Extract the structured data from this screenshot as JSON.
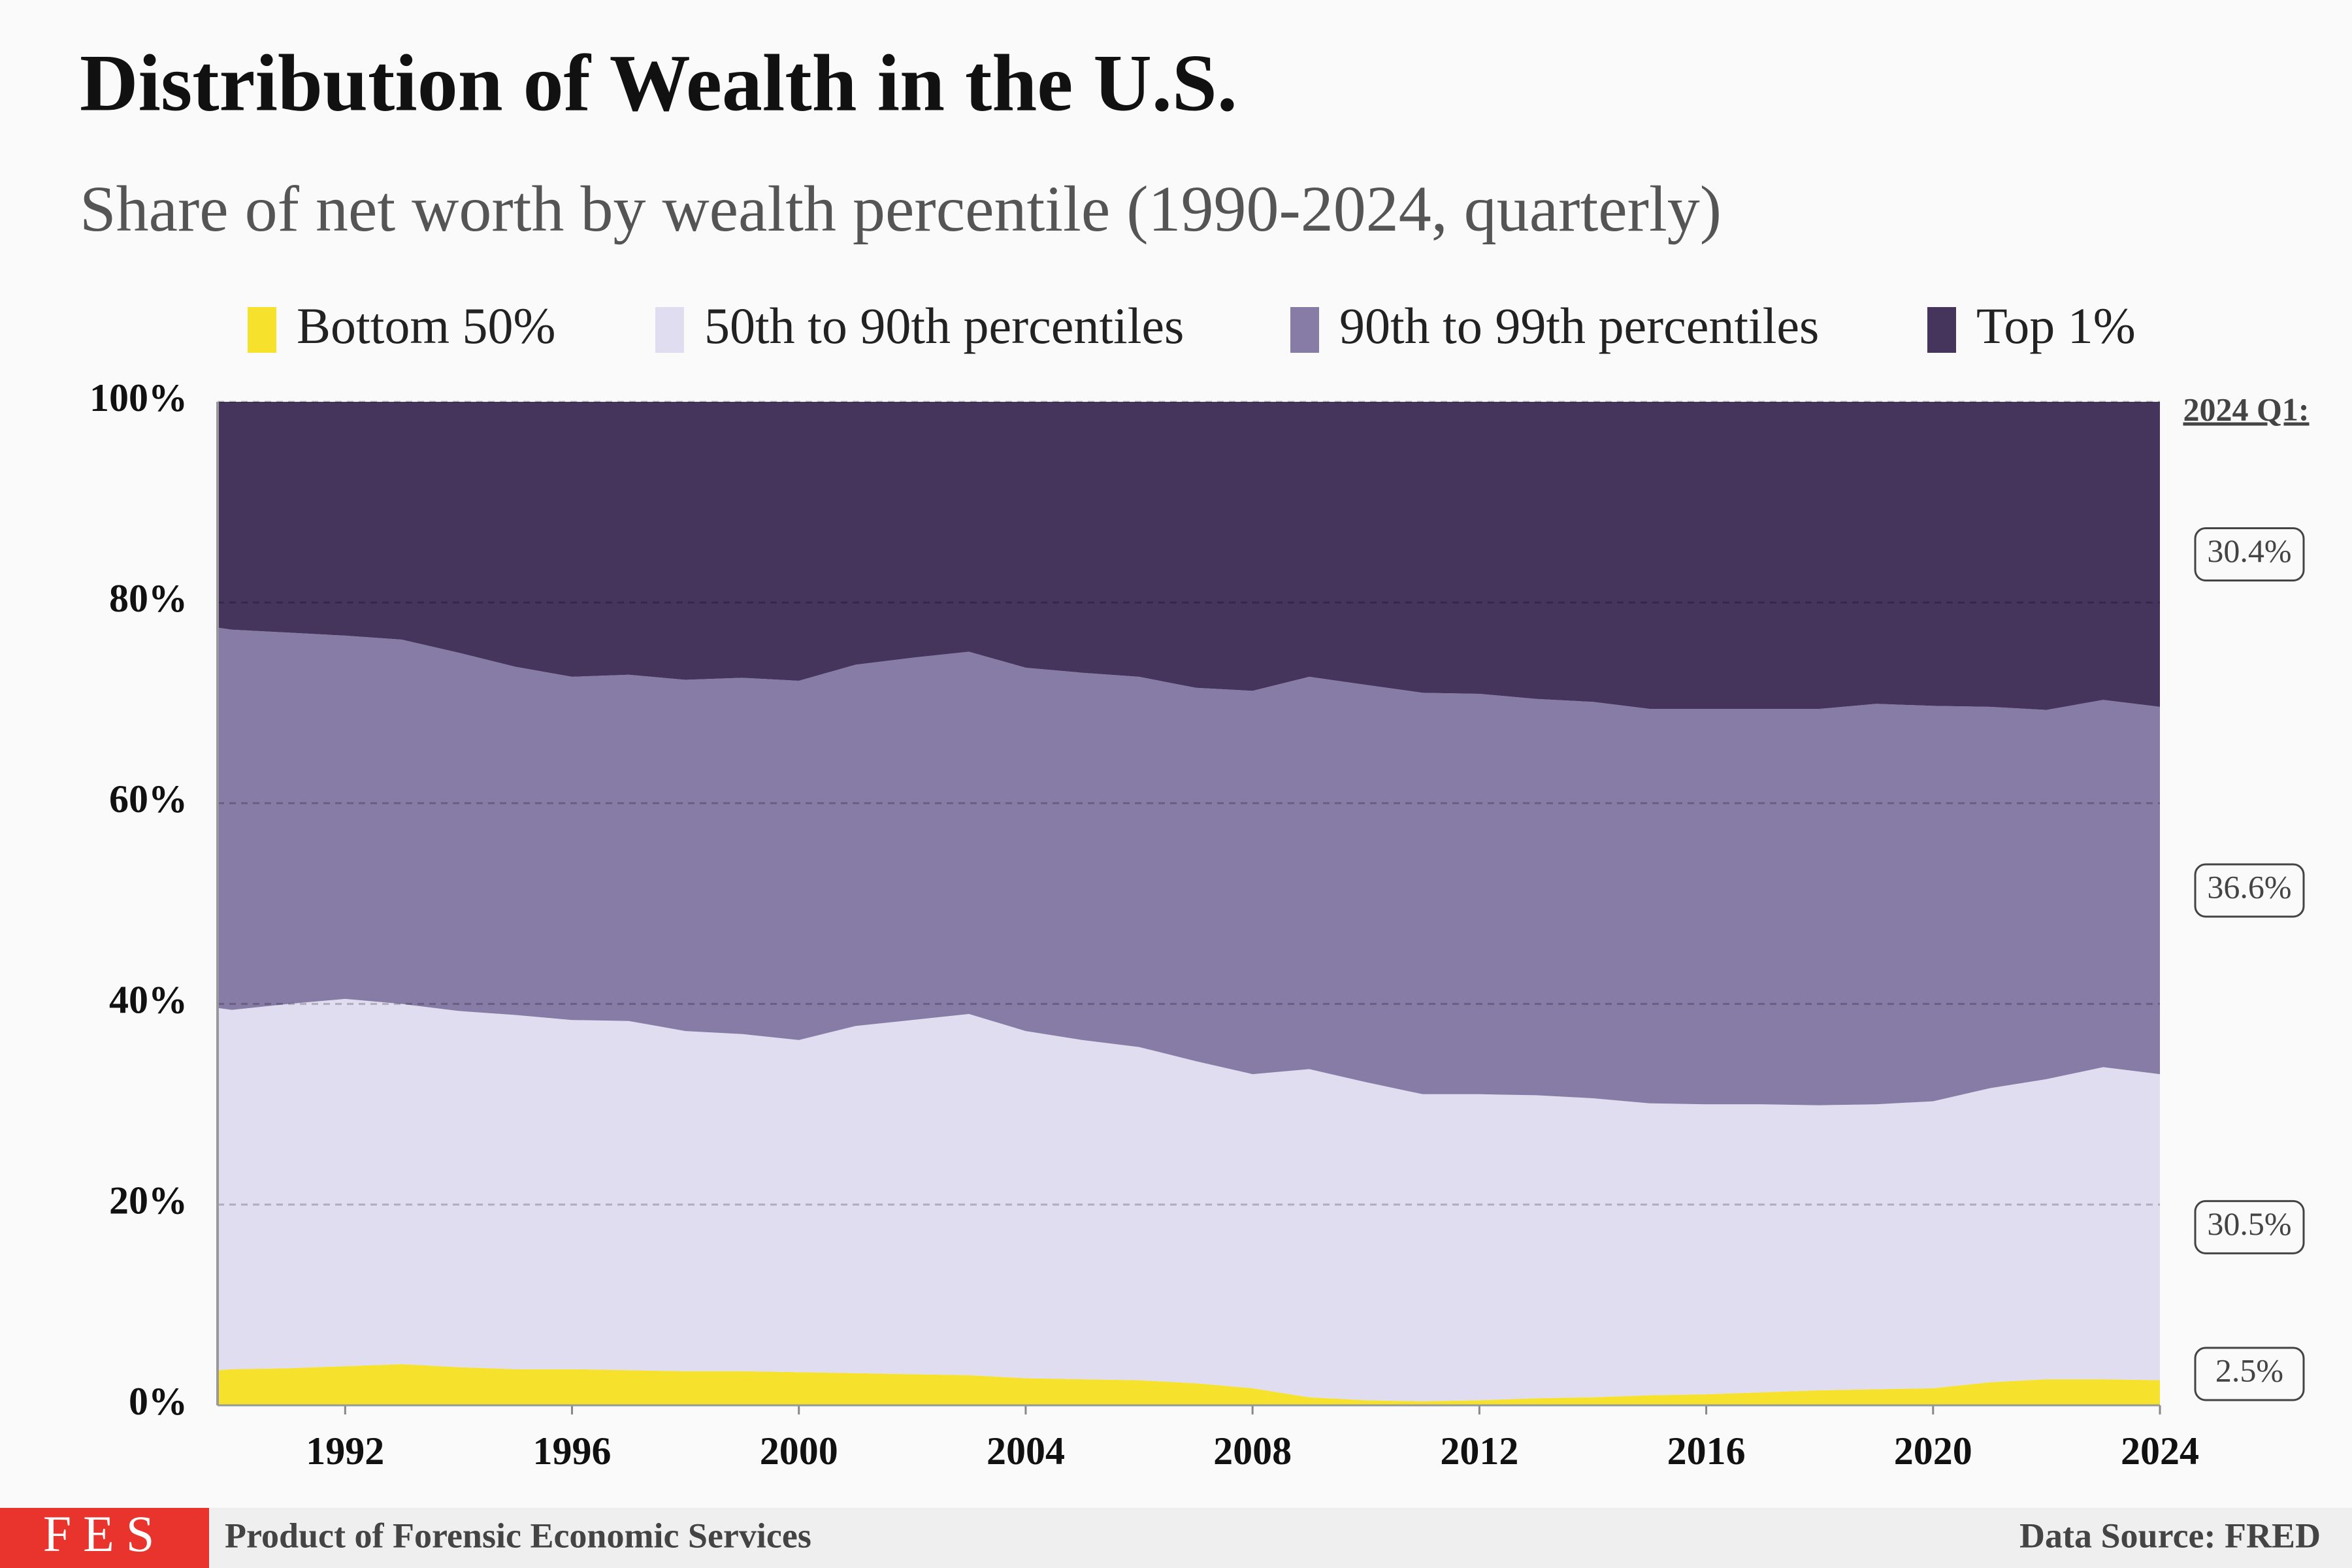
{
  "chart_data": {
    "type": "area",
    "stacked": true,
    "title": "Distribution of Wealth in the U.S.",
    "subtitle": "Share of net worth by wealth percentile (1990-2024, quarterly)",
    "end_label_title": "2024 Q1:",
    "credit": "Product of Forensic Economic Services",
    "source": "Data Source: FRED",
    "logo": "FES",
    "x": [
      1989.75,
      1990,
      1991,
      1992,
      1993,
      1994,
      1995,
      1996,
      1997,
      1998,
      1999,
      2000,
      2001,
      2002,
      2003,
      2004,
      2005,
      2006,
      2007,
      2008,
      2009,
      2010,
      2011,
      2012,
      2013,
      2014,
      2015,
      2016,
      2017,
      2018,
      2019,
      2020,
      2021,
      2022,
      2023,
      2024
    ],
    "xlim": [
      1989.75,
      2024
    ],
    "xticks": [
      1992,
      1996,
      2000,
      2004,
      2008,
      2012,
      2016,
      2020,
      2024
    ],
    "ylim": [
      0,
      100
    ],
    "yticks": [
      {
        "value": 0,
        "label": "0%"
      },
      {
        "value": 20,
        "label": "20%"
      },
      {
        "value": 40,
        "label": "40%"
      },
      {
        "value": 60,
        "label": "60%"
      },
      {
        "value": 80,
        "label": "80%"
      },
      {
        "value": 100,
        "label": "100%"
      }
    ],
    "grid": true,
    "series": [
      {
        "name": "Bottom 50%",
        "color": "#f6e22c",
        "values": [
          3.5,
          3.6,
          3.7,
          3.9,
          4.1,
          3.8,
          3.6,
          3.6,
          3.5,
          3.4,
          3.4,
          3.3,
          3.2,
          3.1,
          3.0,
          2.7,
          2.6,
          2.5,
          2.2,
          1.7,
          0.8,
          0.5,
          0.4,
          0.5,
          0.7,
          0.8,
          1.0,
          1.1,
          1.3,
          1.5,
          1.6,
          1.7,
          2.3,
          2.6,
          2.6,
          2.5
        ],
        "value_labels": [
          null,
          null,
          null,
          null,
          null,
          null,
          null,
          null,
          null,
          null,
          null,
          null,
          null,
          null,
          null,
          null,
          null,
          null,
          null,
          null,
          null,
          null,
          null,
          null,
          null,
          null,
          null,
          null,
          null,
          null,
          null,
          null,
          null,
          null,
          null,
          "2.5%"
        ]
      },
      {
        "name": "50th to 90th percentiles",
        "color": "#e1ddf0",
        "values": [
          36.1,
          35.8,
          36.3,
          36.6,
          35.9,
          35.5,
          35.3,
          34.8,
          34.8,
          33.9,
          33.6,
          33.1,
          34.6,
          35.3,
          36.0,
          34.6,
          33.8,
          33.2,
          32.1,
          31.3,
          32.7,
          31.7,
          30.6,
          30.5,
          30.2,
          29.8,
          29.1,
          28.9,
          28.7,
          28.4,
          28.4,
          28.6,
          29.3,
          29.9,
          31.1,
          30.5
        ],
        "value_labels": [
          null,
          null,
          null,
          null,
          null,
          null,
          null,
          null,
          null,
          null,
          null,
          null,
          null,
          null,
          null,
          null,
          null,
          null,
          null,
          null,
          null,
          null,
          null,
          null,
          null,
          null,
          null,
          null,
          null,
          null,
          null,
          null,
          null,
          null,
          null,
          "30.5%"
        ]
      },
      {
        "name": "90th to 99th percentiles",
        "color": "#877ca6",
        "values": [
          37.9,
          37.9,
          37.0,
          36.2,
          36.3,
          35.7,
          34.7,
          34.2,
          34.5,
          35.0,
          35.5,
          35.8,
          36.0,
          36.1,
          36.1,
          36.2,
          36.6,
          36.9,
          37.2,
          38.2,
          39.1,
          39.6,
          40.0,
          39.9,
          39.5,
          39.5,
          39.3,
          39.4,
          39.4,
          39.5,
          39.9,
          39.4,
          38.0,
          36.8,
          36.6,
          36.6
        ],
        "value_labels": [
          null,
          null,
          null,
          null,
          null,
          null,
          null,
          null,
          null,
          null,
          null,
          null,
          null,
          null,
          null,
          null,
          null,
          null,
          null,
          null,
          null,
          null,
          null,
          null,
          null,
          null,
          null,
          null,
          null,
          null,
          null,
          null,
          null,
          null,
          null,
          "36.6%"
        ]
      },
      {
        "name": "Top 1%",
        "color": "#45345c",
        "values": [
          22.5,
          22.7,
          23.0,
          23.3,
          23.7,
          25.0,
          26.4,
          27.4,
          27.2,
          27.7,
          27.5,
          27.8,
          26.2,
          25.5,
          24.9,
          26.5,
          27.0,
          27.4,
          28.5,
          28.8,
          27.4,
          28.2,
          29.0,
          29.1,
          29.6,
          29.9,
          30.6,
          30.6,
          30.6,
          30.6,
          30.1,
          30.3,
          30.4,
          30.7,
          29.7,
          30.4
        ],
        "value_labels": [
          null,
          null,
          null,
          null,
          null,
          null,
          null,
          null,
          null,
          null,
          null,
          null,
          null,
          null,
          null,
          null,
          null,
          null,
          null,
          null,
          null,
          null,
          null,
          null,
          null,
          null,
          null,
          null,
          null,
          null,
          null,
          null,
          null,
          null,
          null,
          "30.4%"
        ]
      }
    ]
  }
}
